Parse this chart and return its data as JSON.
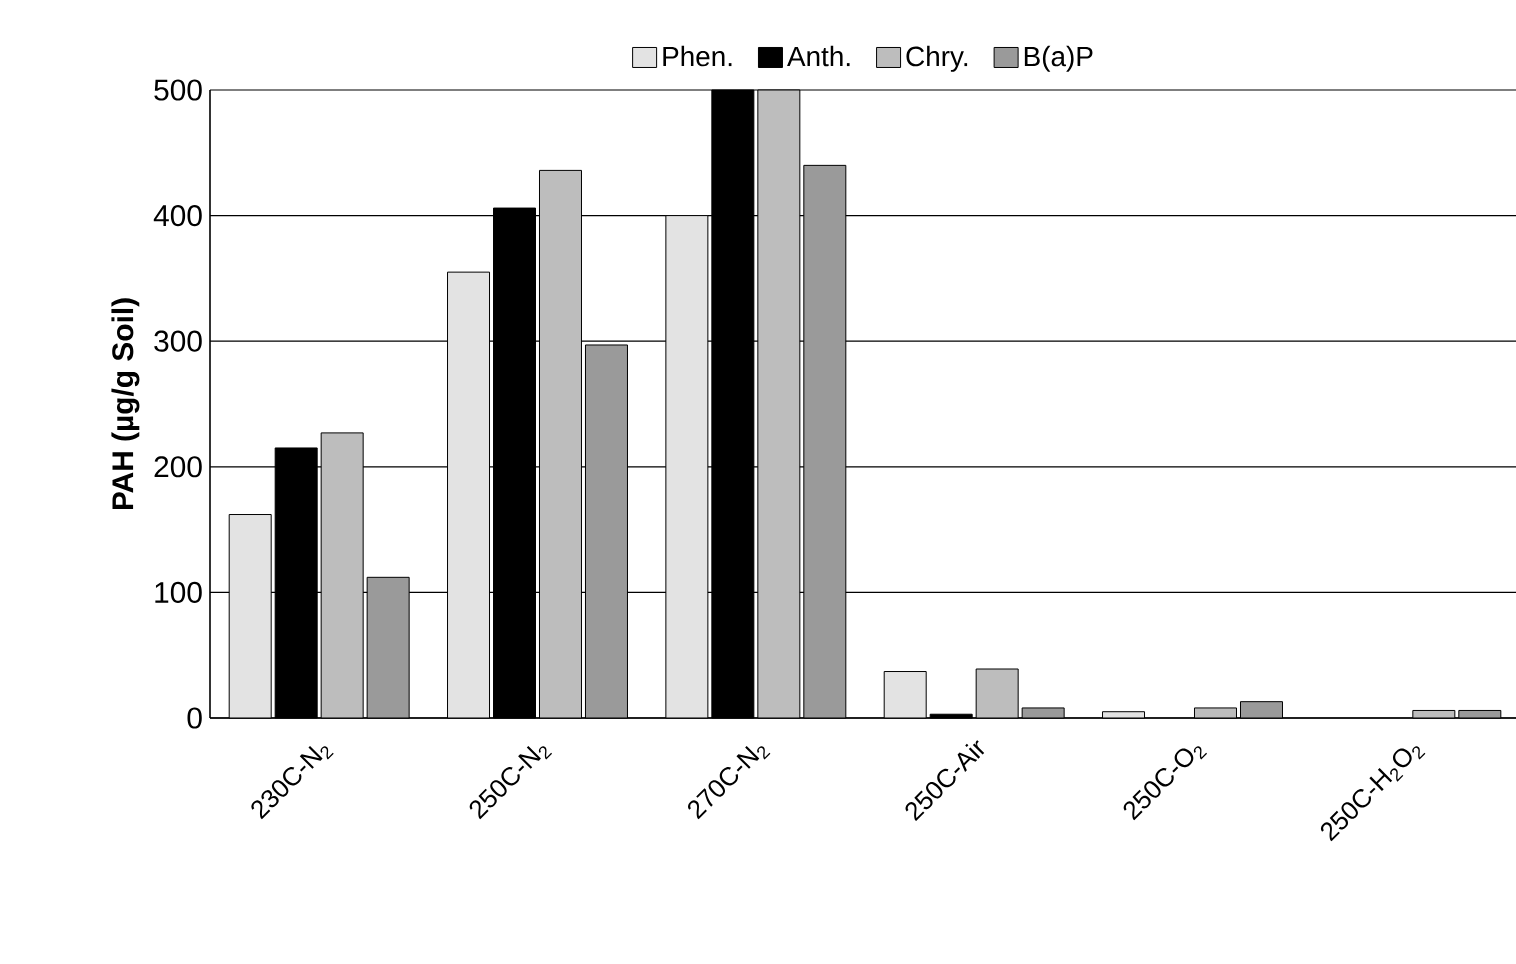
{
  "chart_data": {
    "type": "bar",
    "ylabel": "PAH (µg/g Soil)",
    "categories": [
      "230C-N$_{2}$",
      "250C-N$_{2}$",
      "270C-N$_{2}$",
      "250C-Air",
      "250C-O$_{2}$",
      "250C-H$_{2}$O$_{2}$"
    ],
    "series": [
      {
        "name": "Phen.",
        "color": "#e3e3e3",
        "values": [
          162,
          355,
          400,
          37,
          5,
          null
        ]
      },
      {
        "name": "Anth.",
        "color": "#000000",
        "values": [
          215,
          406,
          500,
          3,
          null,
          null
        ]
      },
      {
        "name": "Chry.",
        "color": "#bdbdbd",
        "values": [
          227,
          436,
          500,
          39,
          8,
          6
        ]
      },
      {
        "name": "B(a)P",
        "color": "#9a9a9a",
        "values": [
          112,
          297,
          440,
          8,
          13,
          6
        ]
      }
    ],
    "ylim": [
      0,
      500
    ],
    "yticks": [
      0,
      100,
      200,
      300,
      400,
      500
    ],
    "grid": "y",
    "legend": "top"
  }
}
